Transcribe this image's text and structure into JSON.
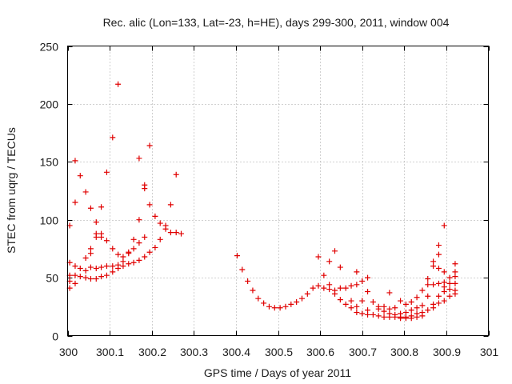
{
  "chart_data": {
    "type": "scatter",
    "title": "Rec. alic (Lon=133, Lat=-23, h=HE), days 299-300, 2011, window 004",
    "xlabel": "GPS time / Days of year 2011",
    "ylabel": "STEC from uqrg / TECUs",
    "xlim": [
      300,
      301
    ],
    "ylim": [
      0,
      250
    ],
    "xticks": [
      "300",
      "300.1",
      "300.2",
      "300.3",
      "300.4",
      "300.5",
      "300.6",
      "300.7",
      "300.8",
      "300.9",
      "301"
    ],
    "yticks": [
      "0",
      "50",
      "100",
      "150",
      "200",
      "250"
    ],
    "xtick_values": [
      300,
      300.1,
      300.2,
      300.3,
      300.4,
      300.5,
      300.6,
      300.7,
      300.8,
      300.9,
      301
    ],
    "ytick_values": [
      0,
      50,
      100,
      150,
      200,
      250
    ],
    "grid": true,
    "marker": "+",
    "color": "#e00000",
    "series": [
      {
        "name": "STEC",
        "points": [
          [
            300.005,
            95
          ],
          [
            300.005,
            63
          ],
          [
            300.005,
            52
          ],
          [
            300.005,
            47
          ],
          [
            300.005,
            41
          ],
          [
            300.018,
            151
          ],
          [
            300.018,
            115
          ],
          [
            300.018,
            60
          ],
          [
            300.018,
            52
          ],
          [
            300.018,
            45
          ],
          [
            300.03,
            138
          ],
          [
            300.03,
            58
          ],
          [
            300.03,
            51
          ],
          [
            300.043,
            124
          ],
          [
            300.043,
            67
          ],
          [
            300.043,
            56
          ],
          [
            300.043,
            50
          ],
          [
            300.055,
            110
          ],
          [
            300.055,
            75
          ],
          [
            300.055,
            71
          ],
          [
            300.055,
            59
          ],
          [
            300.055,
            49
          ],
          [
            300.068,
            98
          ],
          [
            300.068,
            88
          ],
          [
            300.068,
            85
          ],
          [
            300.068,
            58
          ],
          [
            300.068,
            49
          ],
          [
            300.08,
            111
          ],
          [
            300.08,
            88
          ],
          [
            300.08,
            85
          ],
          [
            300.08,
            59
          ],
          [
            300.08,
            51
          ],
          [
            300.093,
            141
          ],
          [
            300.093,
            82
          ],
          [
            300.093,
            60
          ],
          [
            300.093,
            52
          ],
          [
            300.107,
            171
          ],
          [
            300.107,
            75
          ],
          [
            300.107,
            60
          ],
          [
            300.107,
            55
          ],
          [
            300.12,
            217
          ],
          [
            300.12,
            70
          ],
          [
            300.12,
            61
          ],
          [
            300.12,
            58
          ],
          [
            300.132,
            68
          ],
          [
            300.132,
            64
          ],
          [
            300.132,
            60
          ],
          [
            300.145,
            72
          ],
          [
            300.145,
            71
          ],
          [
            300.145,
            62
          ],
          [
            300.157,
            83
          ],
          [
            300.157,
            75
          ],
          [
            300.157,
            63
          ],
          [
            300.17,
            153
          ],
          [
            300.17,
            100
          ],
          [
            300.17,
            80
          ],
          [
            300.17,
            65
          ],
          [
            300.183,
            130
          ],
          [
            300.183,
            127
          ],
          [
            300.183,
            85
          ],
          [
            300.183,
            68
          ],
          [
            300.195,
            164
          ],
          [
            300.195,
            113
          ],
          [
            300.195,
            72
          ],
          [
            300.208,
            103
          ],
          [
            300.208,
            76
          ],
          [
            300.22,
            97
          ],
          [
            300.22,
            83
          ],
          [
            300.233,
            95
          ],
          [
            300.233,
            92
          ],
          [
            300.245,
            113
          ],
          [
            300.245,
            89
          ],
          [
            300.258,
            139
          ],
          [
            300.258,
            89
          ],
          [
            300.27,
            88
          ],
          [
            300.403,
            69
          ],
          [
            300.415,
            57
          ],
          [
            300.428,
            47
          ],
          [
            300.44,
            39
          ],
          [
            300.453,
            32
          ],
          [
            300.466,
            28
          ],
          [
            300.479,
            25
          ],
          [
            300.492,
            24
          ],
          [
            300.505,
            24
          ],
          [
            300.518,
            25
          ],
          [
            300.531,
            27
          ],
          [
            300.544,
            29
          ],
          [
            300.557,
            32
          ],
          [
            300.57,
            36
          ],
          [
            300.583,
            41
          ],
          [
            300.596,
            68
          ],
          [
            300.596,
            43
          ],
          [
            300.609,
            52
          ],
          [
            300.609,
            41
          ],
          [
            300.622,
            64
          ],
          [
            300.622,
            44
          ],
          [
            300.622,
            40
          ],
          [
            300.635,
            73
          ],
          [
            300.635,
            39
          ],
          [
            300.635,
            36
          ],
          [
            300.648,
            59
          ],
          [
            300.648,
            41
          ],
          [
            300.648,
            31
          ],
          [
            300.661,
            41
          ],
          [
            300.661,
            27
          ],
          [
            300.674,
            43
          ],
          [
            300.674,
            30
          ],
          [
            300.674,
            24
          ],
          [
            300.687,
            55
          ],
          [
            300.687,
            44
          ],
          [
            300.687,
            25
          ],
          [
            300.687,
            20
          ],
          [
            300.7,
            47
          ],
          [
            300.7,
            30
          ],
          [
            300.7,
            19
          ],
          [
            300.713,
            50
          ],
          [
            300.713,
            38
          ],
          [
            300.713,
            22
          ],
          [
            300.713,
            18
          ],
          [
            300.726,
            29
          ],
          [
            300.726,
            18
          ],
          [
            300.739,
            25
          ],
          [
            300.739,
            23
          ],
          [
            300.739,
            17
          ],
          [
            300.752,
            25
          ],
          [
            300.752,
            21
          ],
          [
            300.752,
            16
          ],
          [
            300.765,
            37
          ],
          [
            300.765,
            23
          ],
          [
            300.765,
            19
          ],
          [
            300.765,
            16
          ],
          [
            300.778,
            24
          ],
          [
            300.778,
            18
          ],
          [
            300.778,
            16
          ],
          [
            300.791,
            30
          ],
          [
            300.791,
            19
          ],
          [
            300.791,
            16
          ],
          [
            300.791,
            15
          ],
          [
            300.804,
            27
          ],
          [
            300.804,
            20
          ],
          [
            300.804,
            16
          ],
          [
            300.804,
            15
          ],
          [
            300.817,
            29
          ],
          [
            300.817,
            22
          ],
          [
            300.817,
            17
          ],
          [
            300.817,
            15
          ],
          [
            300.83,
            33
          ],
          [
            300.83,
            24
          ],
          [
            300.83,
            19
          ],
          [
            300.83,
            16
          ],
          [
            300.843,
            39
          ],
          [
            300.843,
            26
          ],
          [
            300.843,
            20
          ],
          [
            300.843,
            17
          ],
          [
            300.856,
            49
          ],
          [
            300.856,
            44
          ],
          [
            300.856,
            34
          ],
          [
            300.856,
            22
          ],
          [
            300.869,
            64
          ],
          [
            300.869,
            60
          ],
          [
            300.869,
            44
          ],
          [
            300.869,
            27
          ],
          [
            300.869,
            24
          ],
          [
            300.882,
            78
          ],
          [
            300.882,
            70
          ],
          [
            300.882,
            58
          ],
          [
            300.882,
            45
          ],
          [
            300.882,
            34
          ],
          [
            300.882,
            28
          ],
          [
            300.895,
            95
          ],
          [
            300.895,
            55
          ],
          [
            300.895,
            46
          ],
          [
            300.895,
            42
          ],
          [
            300.895,
            38
          ],
          [
            300.895,
            30
          ],
          [
            300.908,
            50
          ],
          [
            300.908,
            45
          ],
          [
            300.908,
            40
          ],
          [
            300.908,
            34
          ],
          [
            300.921,
            62
          ],
          [
            300.921,
            55
          ],
          [
            300.921,
            51
          ],
          [
            300.921,
            45
          ],
          [
            300.921,
            39
          ],
          [
            300.921,
            36
          ]
        ]
      }
    ]
  }
}
